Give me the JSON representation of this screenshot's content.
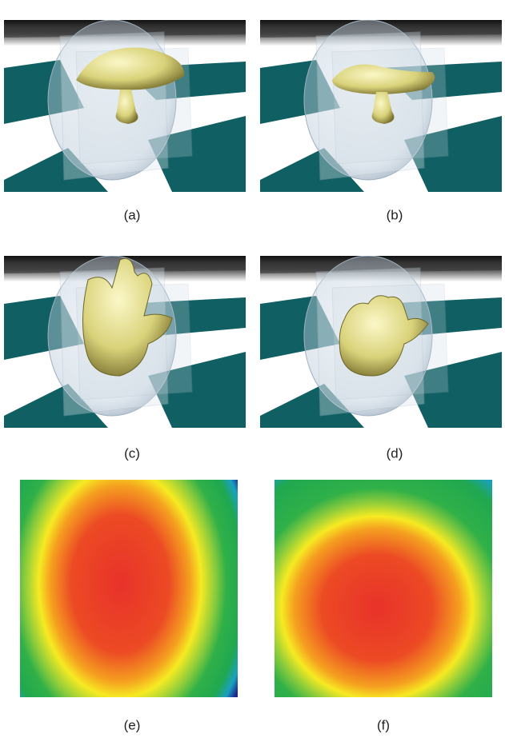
{
  "panels": [
    {
      "label": "(a)"
    },
    {
      "label": "(b)"
    },
    {
      "label": "(c)"
    },
    {
      "label": "(d)"
    },
    {
      "label": "(e)"
    },
    {
      "label": "(f)"
    }
  ]
}
